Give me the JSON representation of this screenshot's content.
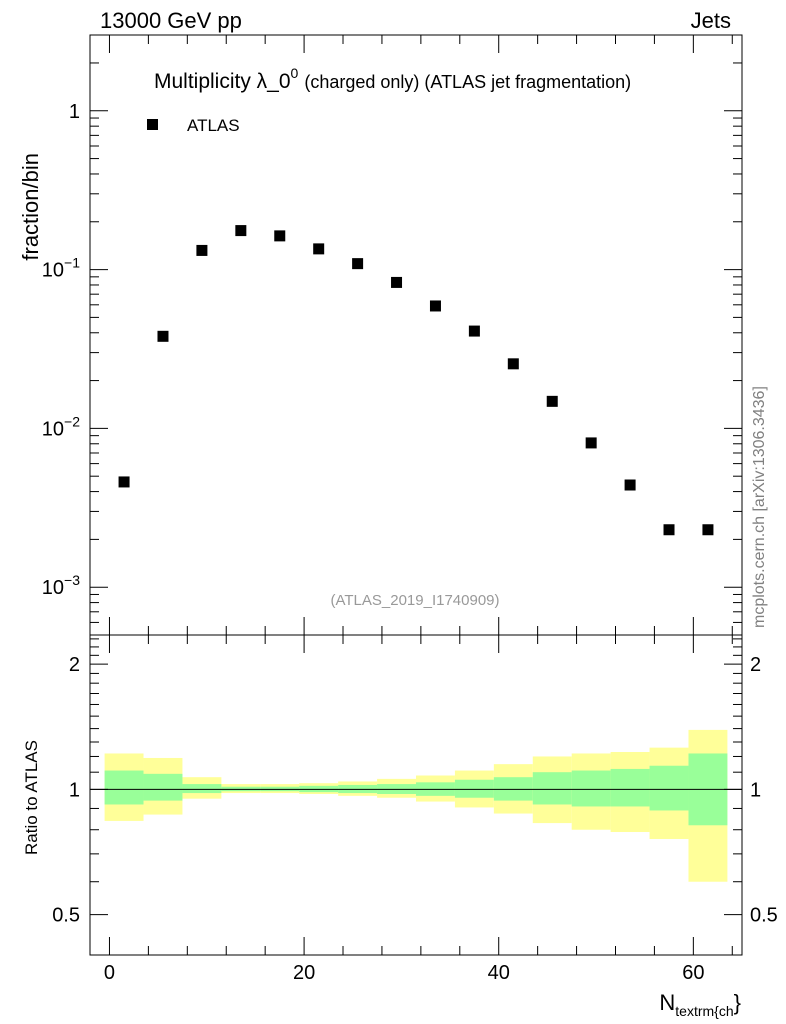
{
  "header": {
    "left": "13000 GeV pp",
    "right": "Jets"
  },
  "reference_label": "(ATLAS_2019_I1740909)",
  "sidebar_label": "mcplots.cern.ch [arXiv:1306.3436]",
  "colors": {
    "band_inner": "#99ff99",
    "band_outer": "#ffff99",
    "marker": "#000000",
    "ref_line": "#000000"
  },
  "chart_data": [
    {
      "type": "scatter",
      "panel": "main",
      "title": "Multiplicity λ_0",
      "title_superscript": "0",
      "subtitle": "(charged only) (ATLAS jet fragmentation)",
      "ylabel": "fraction/bin",
      "yscale": "log",
      "ylim": [
        0.0005,
        3
      ],
      "xlim": [
        -2,
        65
      ],
      "ytick_labels": [
        {
          "value": 0.001,
          "base": "10",
          "exp": "−3"
        },
        {
          "value": 0.01,
          "base": "10",
          "exp": "−2"
        },
        {
          "value": 0.1,
          "base": "10",
          "exp": "−1"
        },
        {
          "value": 1,
          "base": "1",
          "exp": ""
        }
      ],
      "legend": {
        "position": "top-left",
        "entries": [
          "ATLAS"
        ]
      },
      "series": [
        {
          "name": "ATLAS",
          "x": [
            1.5,
            5.5,
            9.5,
            13.5,
            17.5,
            21.5,
            25.5,
            29.5,
            33.5,
            37.5,
            41.5,
            45.5,
            49.5,
            53.5,
            57.5,
            61.5
          ],
          "y": [
            0.0046,
            0.038,
            0.132,
            0.176,
            0.163,
            0.135,
            0.109,
            0.083,
            0.059,
            0.041,
            0.0255,
            0.0148,
            0.0081,
            0.0044,
            0.0023,
            0.0023
          ]
        }
      ]
    },
    {
      "type": "area",
      "panel": "ratio",
      "ylabel": "Ratio to ATLAS",
      "xlabel": "N",
      "xlabel_subscript": "textrm{ch",
      "xlabel_suffix": "}",
      "xlim": [
        -2,
        65
      ],
      "ylim": [
        0.4,
        2.35
      ],
      "yscale": "log",
      "ytick_labels": [
        "0.5",
        "1",
        "2"
      ],
      "ytick_values": [
        0.5,
        1,
        2
      ],
      "xtick_labels": [
        "0",
        "20",
        "40",
        "60"
      ],
      "xtick_values": [
        0,
        20,
        40,
        60
      ],
      "reference_line": 1,
      "bin_edges": [
        -0.5,
        3.5,
        7.5,
        11.5,
        15.5,
        19.5,
        23.5,
        27.5,
        31.5,
        35.5,
        39.5,
        43.5,
        47.5,
        51.5,
        55.5,
        59.5,
        63.5
      ],
      "bands": [
        {
          "name": "inner",
          "low": [
            0.92,
            0.94,
            0.98,
            0.99,
            0.99,
            0.985,
            0.98,
            0.975,
            0.965,
            0.955,
            0.94,
            0.92,
            0.91,
            0.91,
            0.89,
            0.82
          ],
          "high": [
            1.11,
            1.09,
            1.03,
            1.015,
            1.015,
            1.02,
            1.025,
            1.03,
            1.04,
            1.055,
            1.07,
            1.1,
            1.11,
            1.12,
            1.14,
            1.22
          ]
        },
        {
          "name": "outer",
          "low": [
            0.84,
            0.87,
            0.95,
            0.98,
            0.98,
            0.975,
            0.965,
            0.955,
            0.935,
            0.905,
            0.875,
            0.83,
            0.8,
            0.79,
            0.76,
            0.6
          ],
          "high": [
            1.22,
            1.19,
            1.07,
            1.03,
            1.03,
            1.035,
            1.045,
            1.06,
            1.08,
            1.11,
            1.15,
            1.2,
            1.22,
            1.23,
            1.26,
            1.39
          ]
        }
      ]
    }
  ]
}
